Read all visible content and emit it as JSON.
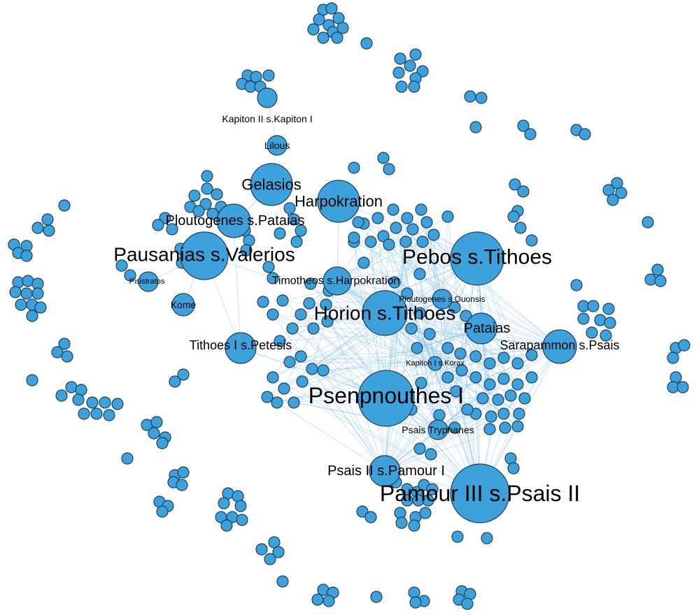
{
  "colors": {
    "node_fill": "#3da2dc",
    "node_stroke": "#1c3f5c",
    "edge": "#8cc4ec",
    "label": "#000000",
    "background": "#ffffff"
  },
  "hubs": [
    "Pamour III s.Psais II",
    "Psenpnouthes I",
    "Pebos s.Tithoes",
    "Horion s.Tithoes",
    "Pausanias s.Valerios",
    "Harpokration",
    "Gelasios",
    "Ploutogenes s.Pataias",
    "Sarapammon s.Psais",
    "Pataias",
    "Tithoes I s.Petesis",
    "Timotheos s.Harpokration",
    "Psais II s.Pamour I",
    "Psais Tryphanes",
    "Kapiton II s.Kapiton I",
    "Lilous",
    "Kome",
    "Ploutogenes s.Ouonsis",
    "Kapiton I s.Korax",
    "Pisistratos"
  ]
}
